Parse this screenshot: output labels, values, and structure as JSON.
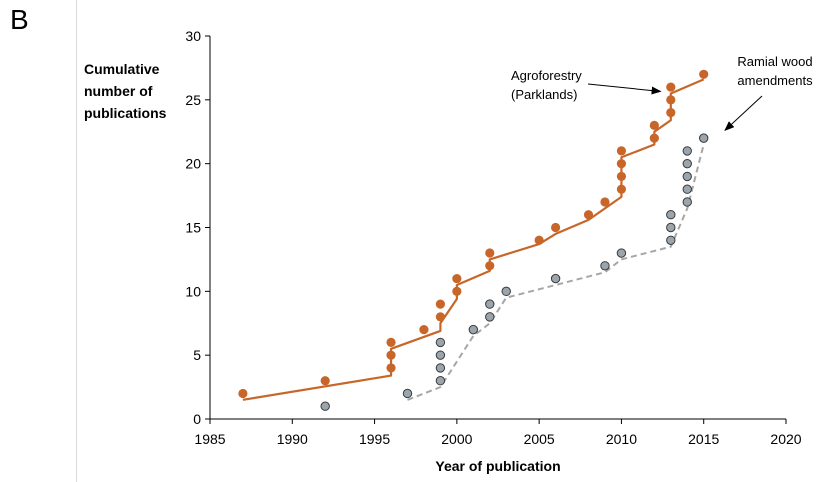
{
  "panel_label": "B",
  "chart_data": {
    "type": "scatter",
    "title": "",
    "xlabel": "Year of publication",
    "ylabel": "Cumulative\nnumber of\npublications",
    "xlim": [
      1985,
      2020
    ],
    "ylim": [
      0,
      30
    ],
    "xticks": [
      1985,
      1990,
      1995,
      2000,
      2005,
      2010,
      2015,
      2020
    ],
    "yticks": [
      0,
      5,
      10,
      15,
      20,
      25,
      30
    ],
    "grid": false,
    "legend": "none",
    "series": [
      {
        "name": "Agroforestry (Parklands)",
        "color": "#c8662a",
        "line_style": "solid",
        "points": [
          [
            1987,
            2
          ],
          [
            1992,
            3
          ],
          [
            1996,
            4
          ],
          [
            1996,
            5
          ],
          [
            1996,
            6
          ],
          [
            1998,
            7
          ],
          [
            1999,
            8
          ],
          [
            1999,
            9
          ],
          [
            2000,
            10
          ],
          [
            2000,
            11
          ],
          [
            2002,
            12
          ],
          [
            2002,
            13
          ],
          [
            2005,
            14
          ],
          [
            2006,
            15
          ],
          [
            2008,
            16
          ],
          [
            2009,
            17
          ],
          [
            2010,
            18
          ],
          [
            2010,
            19
          ],
          [
            2010,
            20
          ],
          [
            2010,
            21
          ],
          [
            2012,
            22
          ],
          [
            2012,
            23
          ],
          [
            2013,
            24
          ],
          [
            2013,
            25
          ],
          [
            2013,
            26
          ],
          [
            2015,
            27
          ]
        ],
        "fit": [
          [
            1987,
            1.5
          ],
          [
            1996,
            3.4
          ],
          [
            1996,
            5.5
          ],
          [
            1999,
            6.9
          ],
          [
            1999,
            7.5
          ],
          [
            2000,
            9.4
          ],
          [
            2000,
            10.5
          ],
          [
            2002,
            11.6
          ],
          [
            2002,
            12.5
          ],
          [
            2005,
            13.7
          ],
          [
            2006,
            14.5
          ],
          [
            2008,
            15.6
          ],
          [
            2010,
            17.4
          ],
          [
            2010,
            20.5
          ],
          [
            2012,
            21.5
          ],
          [
            2012,
            22.5
          ],
          [
            2013,
            23.4
          ],
          [
            2013,
            25.5
          ],
          [
            2015,
            26.6
          ]
        ]
      },
      {
        "name": "Ramial wood amendments",
        "color": "#9aa5ad",
        "line_color": "#a6a6a6",
        "line_style": "dashed",
        "points": [
          [
            1992,
            1
          ],
          [
            1997,
            2
          ],
          [
            1999,
            3
          ],
          [
            1999,
            4
          ],
          [
            1999,
            5
          ],
          [
            1999,
            6
          ],
          [
            2001,
            7
          ],
          [
            2002,
            8
          ],
          [
            2002,
            9
          ],
          [
            2003,
            10
          ],
          [
            2006,
            11
          ],
          [
            2009,
            12
          ],
          [
            2010,
            13
          ],
          [
            2013,
            14
          ],
          [
            2013,
            15
          ],
          [
            2013,
            16
          ],
          [
            2014,
            17
          ],
          [
            2014,
            18
          ],
          [
            2014,
            19
          ],
          [
            2014,
            20
          ],
          [
            2014,
            21
          ],
          [
            2015,
            22
          ]
        ]
      }
    ],
    "annotations": [
      {
        "text": "Agroforestry\n(Parklands)",
        "points_to": [
          2012.5,
          25.5
        ]
      },
      {
        "text": "Ramial wood\namendments",
        "points_to": [
          2015.2,
          22.3
        ]
      }
    ]
  }
}
